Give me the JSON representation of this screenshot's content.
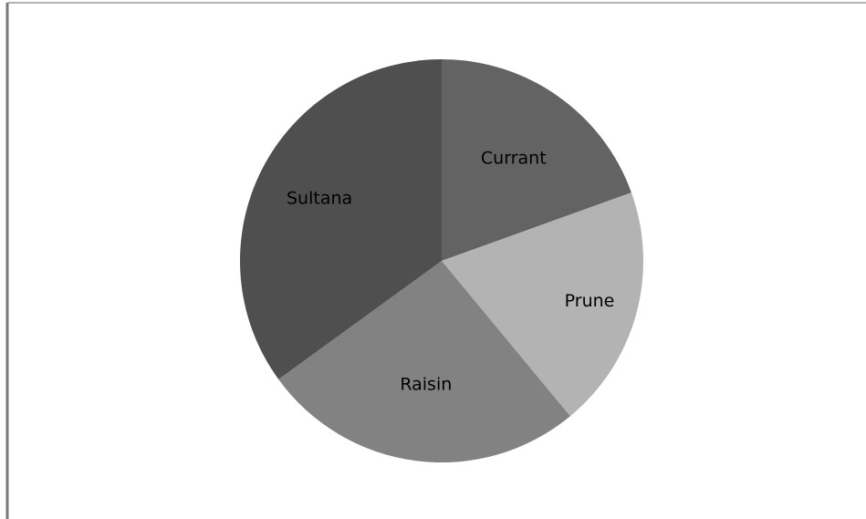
{
  "chart_data": {
    "type": "pie",
    "title": "",
    "start_angle_deg": 0,
    "direction": "clockwise",
    "legend": "none",
    "slices": [
      {
        "label": "Currant",
        "value": 19.5,
        "color": "#636363"
      },
      {
        "label": "Prune",
        "value": 19.5,
        "color": "#b3b3b3"
      },
      {
        "label": "Raisin",
        "value": 26.0,
        "color": "#828282"
      },
      {
        "label": "Sultana",
        "value": 35.0,
        "color": "#4f4f4f"
      }
    ]
  },
  "frame": {
    "border_color": "#9a9a9a",
    "background": "#ffffff"
  }
}
